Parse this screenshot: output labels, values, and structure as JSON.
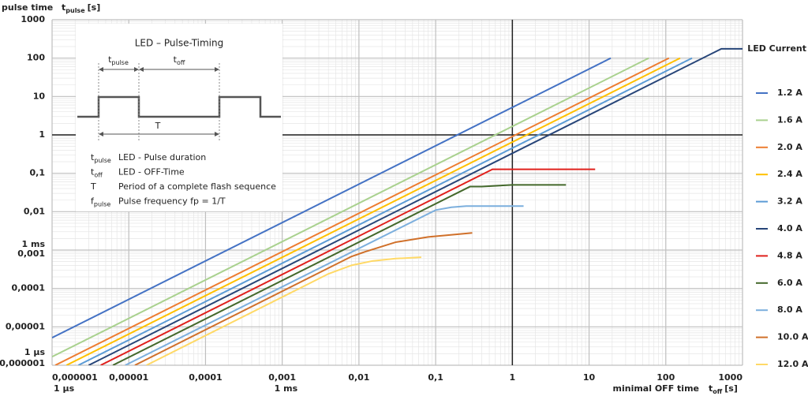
{
  "chart_data": {
    "type": "line",
    "y_axis_label": {
      "name": "pulse time",
      "symbol": "t",
      "subscript": "pulse",
      "unit": "[s]"
    },
    "x_axis_label": {
      "name": "minimal OFF time",
      "symbol": "t",
      "subscript": "off",
      "unit": "[s]"
    },
    "legend_title": "LED Current",
    "legend_position": "right",
    "log_scale": {
      "x": true,
      "y": true
    },
    "grid": true,
    "minor_grid": true,
    "reference_lines": {
      "x": 1,
      "y": 1
    },
    "xlim": [
      1e-06,
      1000
    ],
    "ylim": [
      1e-06,
      1000
    ],
    "xticks": [
      {
        "value": 1e-06,
        "label": "0,000001"
      },
      {
        "value": 1e-05,
        "label": "0,00001"
      },
      {
        "value": 0.0001,
        "label": "0,0001"
      },
      {
        "value": 0.001,
        "label": "0,001"
      },
      {
        "value": 0.01,
        "label": "0,01"
      },
      {
        "value": 0.1,
        "label": "0,1"
      },
      1,
      10,
      100,
      1000
    ],
    "yticks": [
      {
        "value": 1e-06,
        "label": "0,000001"
      },
      {
        "value": 1e-05,
        "label": "0,00001"
      },
      {
        "value": 0.0001,
        "label": "0,0001"
      },
      {
        "value": 0.001,
        "label": "0,001"
      },
      {
        "value": 0.01,
        "label": "0,01"
      },
      {
        "value": 0.1,
        "label": "0,1"
      },
      1,
      10,
      100,
      1000
    ],
    "x_unit_labels": [
      {
        "value": 1e-06,
        "label": "1 µs"
      },
      {
        "value": 0.001,
        "label": "1 ms"
      }
    ],
    "y_unit_labels": [
      {
        "value": 1e-06,
        "label": "1 µs"
      },
      {
        "value": 0.001,
        "label": "1 ms"
      }
    ],
    "series": [
      {
        "name": "1.2 A",
        "color": "#4472c4",
        "x": [
          1e-06,
          19.2
        ],
        "values": [
          5.2e-06,
          100
        ]
      },
      {
        "name": "1.6 A",
        "color": "#a9d18e",
        "x": [
          1e-06,
          60
        ],
        "values": [
          1.66e-06,
          100
        ]
      },
      {
        "name": "2.0 A",
        "color": "#ed7d31",
        "x": [
          1.1e-06,
          110
        ],
        "values": [
          1e-06,
          100
        ]
      },
      {
        "name": "2.4 A",
        "color": "#ffc000",
        "x": [
          1.54e-06,
          154
        ],
        "values": [
          1e-06,
          100
        ]
      },
      {
        "name": "3.2 A",
        "color": "#5b9bd5",
        "x": [
          2.2e-06,
          220
        ],
        "values": [
          1e-06,
          100
        ]
      },
      {
        "name": "4.0 A",
        "color": "#264478",
        "x": [
          3e-06,
          530,
          1000
        ],
        "values": [
          1e-06,
          175,
          175
        ]
      },
      {
        "name": "4.8 A",
        "color": "#e0201c",
        "x": [
          4.3e-06,
          0.55,
          12
        ],
        "values": [
          1e-06,
          0.127,
          0.127
        ]
      },
      {
        "name": "6.0 A",
        "color": "#43682b",
        "x": [
          6.2e-06,
          0.28,
          0.4,
          1,
          5
        ],
        "values": [
          1e-06,
          0.045,
          0.045,
          0.05,
          0.05
        ]
      },
      {
        "name": "8.0 A",
        "color": "#7cafdd",
        "x": [
          9e-06,
          0.1,
          0.16,
          0.25,
          1.4
        ],
        "values": [
          1e-06,
          0.011,
          0.013,
          0.014,
          0.014
        ]
      },
      {
        "name": "10.0 A",
        "color": "#d0702a",
        "x": [
          1.2e-05,
          0.008,
          0.012,
          0.03,
          0.08,
          0.3
        ],
        "values": [
          1e-06,
          0.00068,
          0.0009,
          0.0016,
          0.0022,
          0.0028
        ]
      },
      {
        "name": "12.0 A",
        "color": "#ffd966",
        "x": [
          1.7e-05,
          0.004,
          0.008,
          0.015,
          0.03,
          0.065
        ],
        "values": [
          1e-06,
          0.00024,
          0.0004,
          0.00052,
          0.0006,
          0.00065
        ]
      }
    ]
  },
  "inset": {
    "title": "LED – Pulse-Timing",
    "pulse_label": {
      "symbol": "t",
      "subscript": "pulse"
    },
    "off_label": {
      "symbol": "t",
      "subscript": "off"
    },
    "period_label": "T",
    "definitions": [
      {
        "symbol": "t",
        "subscript": "pulse",
        "text": "LED - Pulse duration"
      },
      {
        "symbol": "t",
        "subscript": "off",
        "text": "LED - OFF-Time"
      },
      {
        "symbol": "T",
        "subscript": "",
        "text": "Period of a complete flash sequence"
      },
      {
        "symbol": "f",
        "subscript": "pulse",
        "text": "Pulse frequency fp = 1/T"
      }
    ]
  }
}
